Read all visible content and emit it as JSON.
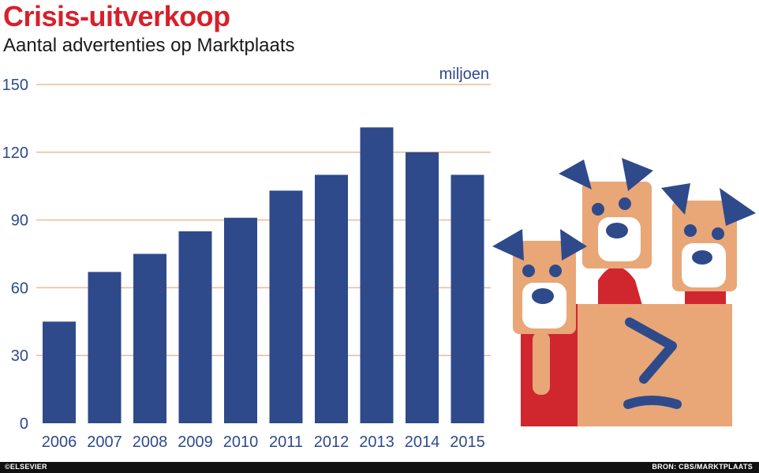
{
  "header": {
    "title": "Crisis-uitverkoop",
    "subtitle": "Aantal advertenties op Marktplaats"
  },
  "footer": {
    "credit": "©ELSEVIER",
    "source": "BRON: CBS/MARKTPLAATS"
  },
  "colors": {
    "bar": "#2e4a8b",
    "gridline": "#f0b890",
    "axis_text": "#2e4a8b",
    "title": "#d7202b"
  },
  "chart_data": {
    "type": "bar",
    "title": "Crisis-uitverkoop",
    "subtitle": "Aantal advertenties op Marktplaats",
    "unit_label": "miljoen",
    "categories": [
      "2006",
      "2007",
      "2008",
      "2009",
      "2010",
      "2011",
      "2012",
      "2013",
      "2014",
      "2015"
    ],
    "values": [
      45,
      67,
      75,
      85,
      91,
      103,
      110,
      131,
      120,
      110
    ],
    "yticks": [
      0,
      30,
      60,
      90,
      120,
      150
    ],
    "ylim": [
      0,
      150
    ],
    "grid": true,
    "legend": "none"
  },
  "illustration": {
    "name": "three dogs in a box",
    "box_symbol": "≥"
  }
}
